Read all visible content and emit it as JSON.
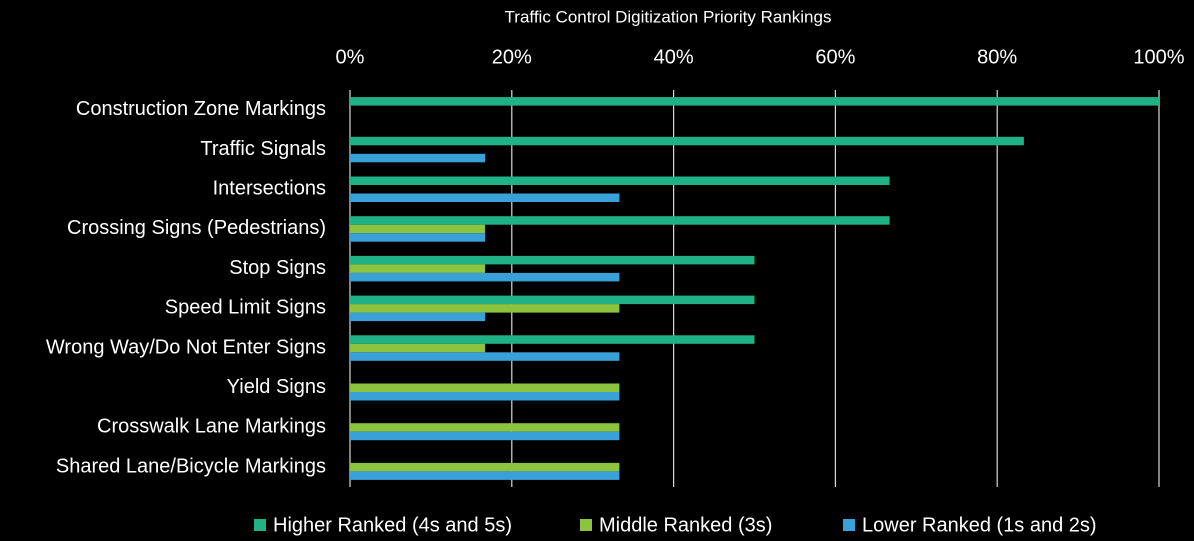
{
  "chart_data": {
    "type": "hbar",
    "title": "Traffic Control Digitization Priority Rankings",
    "categories": [
      "Construction Zone Markings",
      "Traffic Signals",
      "Intersections",
      "Crossing Signs (Pedestrians)",
      "Stop Signs",
      "Speed Limit Signs",
      "Wrong Way/Do Not Enter Signs",
      "Yield Signs",
      "Crosswalk Lane Markings",
      "Shared Lane/Bicycle Markings"
    ],
    "series": [
      {
        "name": "Higher Ranked (4s and 5s)",
        "color": "#20b285",
        "values": [
          100,
          83.3,
          66.7,
          66.7,
          50,
          50,
          50,
          0,
          0,
          0
        ]
      },
      {
        "name": "Middle Ranked (3s)",
        "color": "#8cc43f",
        "values": [
          0,
          0,
          0,
          16.7,
          16.7,
          33.3,
          16.7,
          33.3,
          33.3,
          33.3
        ]
      },
      {
        "name": "Lower Ranked (1s and 2s)",
        "color": "#3aa0d8",
        "values": [
          0,
          16.7,
          33.3,
          16.7,
          33.3,
          16.7,
          33.3,
          33.3,
          33.3,
          33.3
        ]
      }
    ],
    "xlim": [
      0,
      100
    ],
    "xticks": [
      {
        "value": 0,
        "label": "0%"
      },
      {
        "value": 20,
        "label": "20%"
      },
      {
        "value": 40,
        "label": "40%"
      },
      {
        "value": 60,
        "label": "60%"
      },
      {
        "value": 80,
        "label": "80%"
      },
      {
        "value": 100,
        "label": "100%"
      }
    ],
    "grid": true,
    "legend": "bottom"
  }
}
